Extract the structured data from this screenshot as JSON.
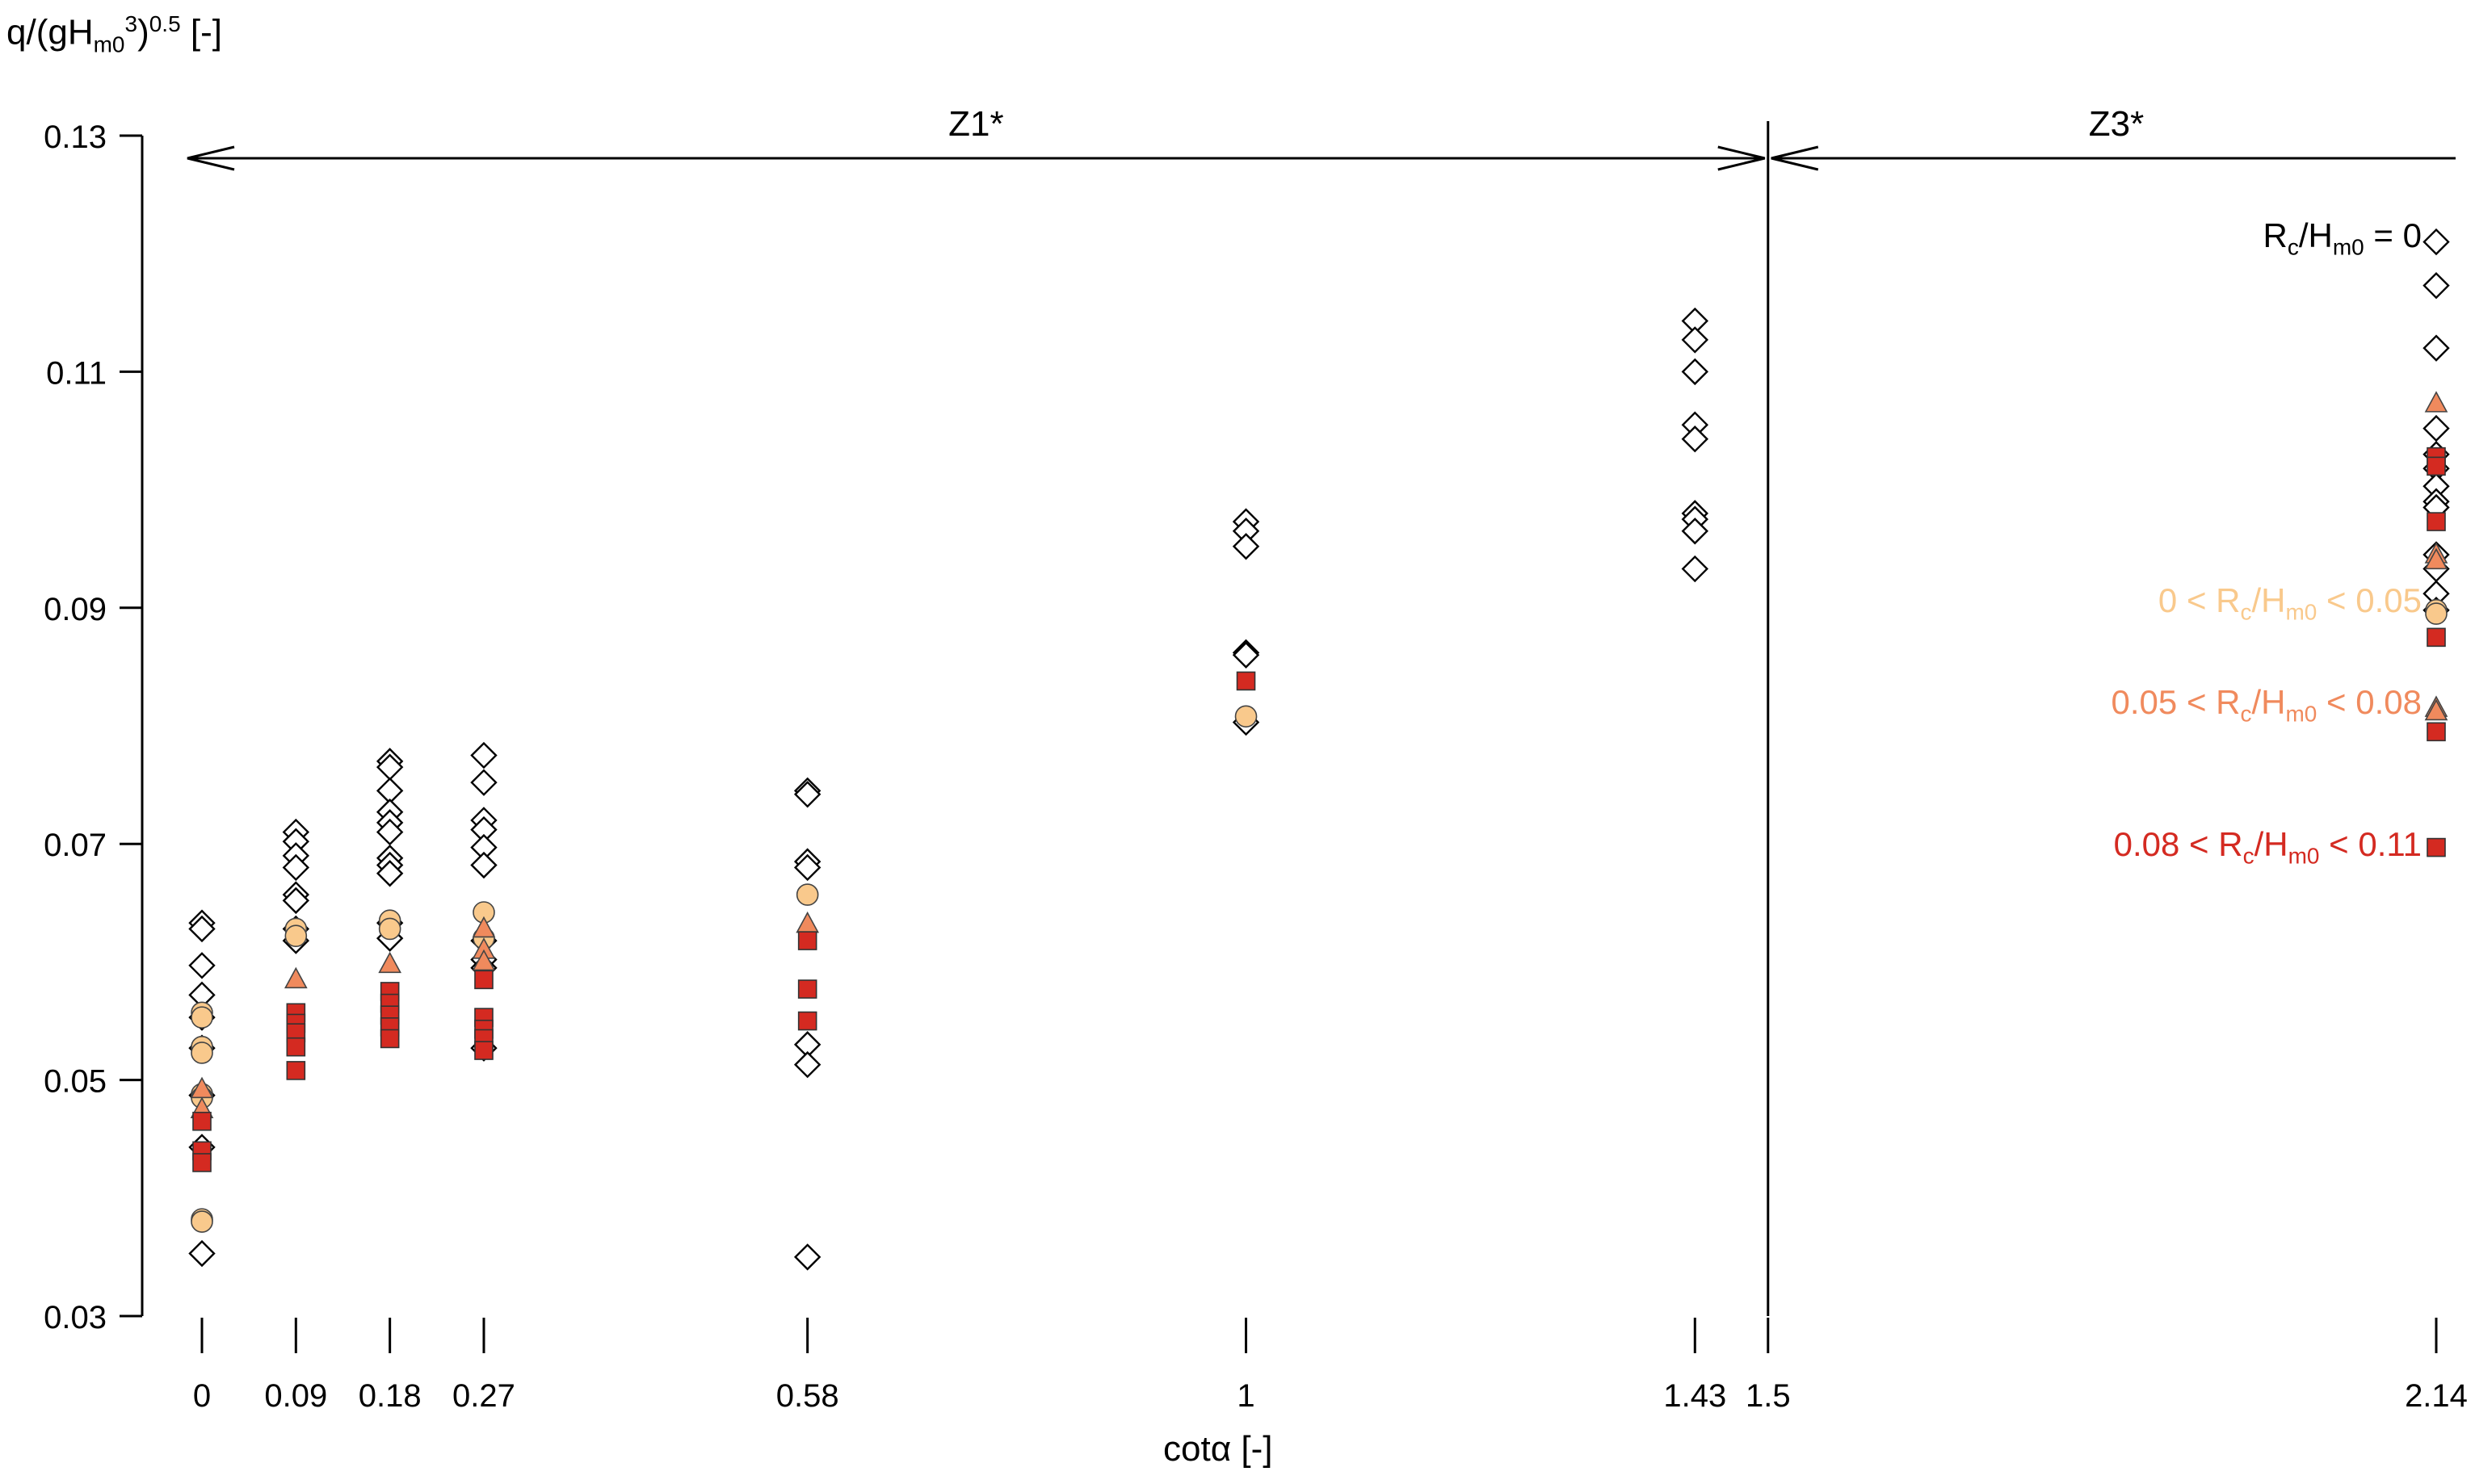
{
  "chart_data": {
    "type": "scatter",
    "title": "",
    "ylabel": {
      "prefix": "q/(gH",
      "sub": "m0",
      "sup1": "3",
      "mid": ")",
      "sup2": "0.5",
      "suffix": " [-]"
    },
    "xlabel": "cotα [-]",
    "ylim": [
      0.03,
      0.13
    ],
    "y_ticks": [
      "0.03",
      "0.05",
      "0.07",
      "0.09",
      "0.11",
      "0.13"
    ],
    "x_positions": [
      0,
      0.09,
      0.18,
      0.27,
      0.58,
      1,
      1.43,
      1.5,
      2.14
    ],
    "x_tick_labels": [
      "0",
      "0.09",
      "0.18",
      "0.27",
      "0.58",
      "1",
      "1.43",
      "1.5",
      "2.14"
    ],
    "zones": [
      {
        "label": "Z1*",
        "from": 0,
        "to": 1.5
      },
      {
        "label": "Z3*",
        "from": 1.5,
        "to": 2.14
      }
    ],
    "divider_x": 1.5,
    "legend_placement": "right",
    "series": [
      {
        "name_parts": {
          "pre": "R",
          "sub_c": "c",
          "mid": "/H",
          "sub_m": "m0",
          "post": " = 0"
        },
        "marker": "diamond",
        "color": "#ffffff",
        "label_color": "#000000",
        "points": [
          [
            0,
            0.0633
          ],
          [
            0,
            0.0628
          ],
          [
            0,
            0.0597
          ],
          [
            0,
            0.0572
          ],
          [
            0,
            0.0553
          ],
          [
            0,
            0.0527
          ],
          [
            0,
            0.0487
          ],
          [
            0,
            0.0443
          ],
          [
            0,
            0.0353
          ],
          [
            0.09,
            0.071
          ],
          [
            0.09,
            0.0702
          ],
          [
            0.09,
            0.069
          ],
          [
            0.09,
            0.068
          ],
          [
            0.09,
            0.0657
          ],
          [
            0.09,
            0.0652
          ],
          [
            0.09,
            0.0628
          ],
          [
            0.09,
            0.0618
          ],
          [
            0.18,
            0.077
          ],
          [
            0.18,
            0.0765
          ],
          [
            0.18,
            0.0745
          ],
          [
            0.18,
            0.0727
          ],
          [
            0.18,
            0.0718
          ],
          [
            0.18,
            0.071
          ],
          [
            0.18,
            0.0688
          ],
          [
            0.18,
            0.0682
          ],
          [
            0.18,
            0.0675
          ],
          [
            0.18,
            0.0633
          ],
          [
            0.18,
            0.062
          ],
          [
            0.27,
            0.0775
          ],
          [
            0.27,
            0.0752
          ],
          [
            0.27,
            0.072
          ],
          [
            0.27,
            0.0712
          ],
          [
            0.27,
            0.0697
          ],
          [
            0.27,
            0.0682
          ],
          [
            0.27,
            0.0618
          ],
          [
            0.27,
            0.0602
          ],
          [
            0.27,
            0.0595
          ],
          [
            0.27,
            0.0527
          ],
          [
            0.58,
            0.0745
          ],
          [
            0.58,
            0.0742
          ],
          [
            0.58,
            0.0685
          ],
          [
            0.58,
            0.068
          ],
          [
            0.58,
            0.053
          ],
          [
            0.58,
            0.0513
          ],
          [
            0.58,
            0.035
          ],
          [
            1,
            0.0973
          ],
          [
            1,
            0.0965
          ],
          [
            1,
            0.0952
          ],
          [
            1,
            0.0862
          ],
          [
            1,
            0.086
          ],
          [
            1,
            0.0803
          ],
          [
            1.43,
            0.1143
          ],
          [
            1.43,
            0.1127
          ],
          [
            1.43,
            0.11
          ],
          [
            1.43,
            0.1055
          ],
          [
            1.43,
            0.1043
          ],
          [
            1.43,
            0.098
          ],
          [
            1.43,
            0.0975
          ],
          [
            1.43,
            0.0965
          ],
          [
            1.43,
            0.0933
          ],
          [
            2.14,
            0.121
          ],
          [
            2.14,
            0.1173
          ],
          [
            2.14,
            0.112
          ],
          [
            2.14,
            0.1052
          ],
          [
            2.14,
            0.103
          ],
          [
            2.14,
            0.1018
          ],
          [
            2.14,
            0.1003
          ],
          [
            2.14,
            0.099
          ],
          [
            2.14,
            0.0985
          ],
          [
            2.14,
            0.0945
          ],
          [
            2.14,
            0.0933
          ],
          [
            2.14,
            0.0912
          ],
          [
            2.14,
            0.0898
          ]
        ]
      },
      {
        "name_parts": {
          "pre": "0 < R",
          "sub_c": "c",
          "mid": "/H",
          "sub_m": "m0",
          "post": " < 0.05"
        },
        "marker": "circle",
        "color": "#f9c98c",
        "label_color": "#f9c98c",
        "points": [
          [
            0,
            0.0557
          ],
          [
            0,
            0.0553
          ],
          [
            0,
            0.0528
          ],
          [
            0,
            0.0523
          ],
          [
            0,
            0.0488
          ],
          [
            0,
            0.0485
          ],
          [
            0,
            0.0382
          ],
          [
            0,
            0.038
          ],
          [
            0.09,
            0.0628
          ],
          [
            0.09,
            0.0622
          ],
          [
            0.18,
            0.0635
          ],
          [
            0.18,
            0.0628
          ],
          [
            0.27,
            0.0642
          ],
          [
            0.27,
            0.062
          ],
          [
            0.58,
            0.0657
          ],
          [
            1,
            0.0808
          ],
          [
            2.14,
            0.0898
          ],
          [
            2.14,
            0.0895
          ]
        ]
      },
      {
        "name_parts": {
          "pre": "0.05 < R",
          "sub_c": "c",
          "mid": "/H",
          "sub_m": "m0",
          "post": " < 0.08"
        },
        "marker": "triangle",
        "color": "#f08a5d",
        "label_color": "#f08a5d",
        "points": [
          [
            0,
            0.0492
          ],
          [
            0,
            0.0475
          ],
          [
            0.09,
            0.0585
          ],
          [
            0.18,
            0.0598
          ],
          [
            0.27,
            0.0628
          ],
          [
            0.27,
            0.061
          ],
          [
            0.27,
            0.06
          ],
          [
            0.58,
            0.0632
          ],
          [
            2.14,
            0.1073
          ],
          [
            2.14,
            0.0945
          ],
          [
            2.14,
            0.094
          ],
          [
            2.14,
            0.0815
          ],
          [
            2.14,
            0.0812
          ]
        ]
      },
      {
        "name_parts": {
          "pre": "0.08 < R",
          "sub_c": "c",
          "mid": "/H",
          "sub_m": "m0",
          "post": " < 0.11"
        },
        "marker": "square",
        "color": "#d42a21",
        "label_color": "#d42a21",
        "points": [
          [
            0,
            0.0465
          ],
          [
            0,
            0.044
          ],
          [
            0,
            0.043
          ],
          [
            0.09,
            0.0557
          ],
          [
            0.09,
            0.0548
          ],
          [
            0.09,
            0.054
          ],
          [
            0.09,
            0.0528
          ],
          [
            0.09,
            0.0508
          ],
          [
            0.18,
            0.0575
          ],
          [
            0.18,
            0.0565
          ],
          [
            0.18,
            0.0555
          ],
          [
            0.18,
            0.0545
          ],
          [
            0.18,
            0.0535
          ],
          [
            0.27,
            0.0585
          ],
          [
            0.27,
            0.0553
          ],
          [
            0.27,
            0.0543
          ],
          [
            0.27,
            0.0535
          ],
          [
            0.27,
            0.0525
          ],
          [
            0.58,
            0.0618
          ],
          [
            0.58,
            0.0577
          ],
          [
            0.58,
            0.055
          ],
          [
            1,
            0.0838
          ],
          [
            2.14,
            0.1028
          ],
          [
            2.14,
            0.102
          ],
          [
            2.14,
            0.0973
          ],
          [
            2.14,
            0.0875
          ],
          [
            2.14,
            0.0795
          ],
          [
            2.14,
            0.0697
          ]
        ]
      }
    ]
  }
}
